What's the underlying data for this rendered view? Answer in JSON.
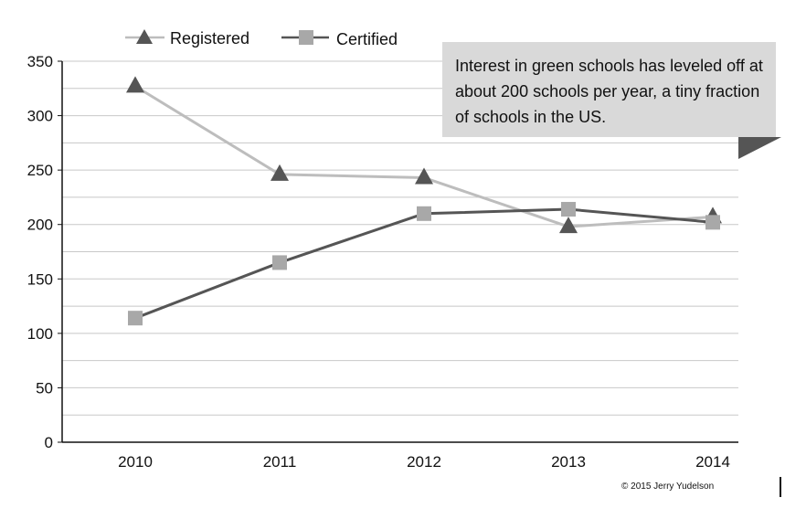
{
  "chart_data": {
    "type": "line",
    "categories": [
      "2010",
      "2011",
      "2012",
      "2013",
      "2014"
    ],
    "series": [
      {
        "name": "Registered",
        "values": [
          327,
          246,
          243,
          198,
          207
        ],
        "color": "#bdbdbd",
        "marker": "triangle",
        "marker_color": "#555555"
      },
      {
        "name": "Certified",
        "values": [
          114,
          165,
          210,
          214,
          202
        ],
        "color": "#555555",
        "marker": "square",
        "marker_color": "#a8a8a8"
      }
    ],
    "ylim": [
      0,
      350
    ],
    "yticks": [
      0,
      50,
      100,
      150,
      200,
      250,
      300,
      350
    ],
    "grid": true,
    "legend": "top-left",
    "annotation": "Interest in green schools has leveled off at about 200 schools per year, a tiny fraction of schools in the US.",
    "credit": "© 2015 Jerry Yudelson",
    "title": "",
    "xlabel": "",
    "ylabel": ""
  }
}
